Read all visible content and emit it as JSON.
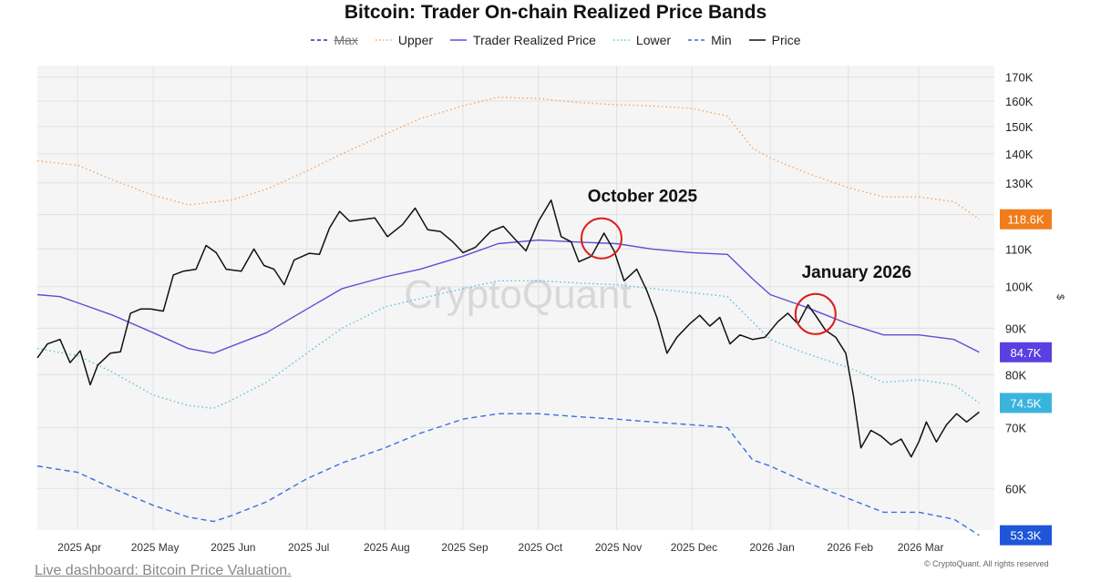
{
  "chart_data": {
    "type": "line",
    "title": "Bitcoin: Trader On-chain Realized Price Bands",
    "xlabel": "",
    "ylabel": "$",
    "y_scale": "log",
    "ylim": [
      54000,
      175000
    ],
    "x_range": [
      "2025-03-16",
      "2026-03-31"
    ],
    "x_ticks": [
      {
        "date": "2025-04-01",
        "label": "2025 Apr"
      },
      {
        "date": "2025-05-01",
        "label": "2025 May"
      },
      {
        "date": "2025-06-01",
        "label": "2025 Jun"
      },
      {
        "date": "2025-07-01",
        "label": "2025 Jul"
      },
      {
        "date": "2025-08-01",
        "label": "2025 Aug"
      },
      {
        "date": "2025-09-01",
        "label": "2025 Sep"
      },
      {
        "date": "2025-10-01",
        "label": "2025 Oct"
      },
      {
        "date": "2025-11-01",
        "label": "2025 Nov"
      },
      {
        "date": "2025-12-01",
        "label": "2025 Dec"
      },
      {
        "date": "2026-01-01",
        "label": "2026 Jan"
      },
      {
        "date": "2026-02-01",
        "label": "2026 Feb"
      },
      {
        "date": "2026-03-01",
        "label": "2026 Mar"
      }
    ],
    "y_ticks": [
      {
        "value": 60000,
        "label": "60K"
      },
      {
        "value": 70000,
        "label": "70K"
      },
      {
        "value": 80000,
        "label": "80K"
      },
      {
        "value": 90000,
        "label": "90K"
      },
      {
        "value": 100000,
        "label": "100K"
      },
      {
        "value": 110000,
        "label": "110K"
      },
      {
        "value": 120000,
        "label": "120K"
      },
      {
        "value": 130000,
        "label": "130K"
      },
      {
        "value": 140000,
        "label": "140K"
      },
      {
        "value": 150000,
        "label": "150K"
      },
      {
        "value": 160000,
        "label": "160K"
      },
      {
        "value": 170000,
        "label": "170K"
      }
    ],
    "grid": true,
    "legend_position": "top",
    "series": [
      {
        "name": "Max",
        "color": "#1e3a8a",
        "style": "dashed",
        "hidden": true,
        "points": []
      },
      {
        "name": "Upper",
        "color": "#f4a261",
        "style": "dotted",
        "end_label": "118.6K",
        "end_label_color": "#f07c1c",
        "points": [
          [
            "2025-03-16",
            137500
          ],
          [
            "2025-04-01",
            136000
          ],
          [
            "2025-04-15",
            131000
          ],
          [
            "2025-05-01",
            126000
          ],
          [
            "2025-05-15",
            123000
          ],
          [
            "2025-06-01",
            124500
          ],
          [
            "2025-06-15",
            128000
          ],
          [
            "2025-07-01",
            134000
          ],
          [
            "2025-07-15",
            140000
          ],
          [
            "2025-08-01",
            147000
          ],
          [
            "2025-08-15",
            153000
          ],
          [
            "2025-09-01",
            158000
          ],
          [
            "2025-09-15",
            161500
          ],
          [
            "2025-10-01",
            161000
          ],
          [
            "2025-10-15",
            159500
          ],
          [
            "2025-11-01",
            158500
          ],
          [
            "2025-11-15",
            158000
          ],
          [
            "2025-12-01",
            157000
          ],
          [
            "2025-12-15",
            154000
          ],
          [
            "2025-12-25",
            142000
          ],
          [
            "2026-01-01",
            138500
          ],
          [
            "2026-01-15",
            133500
          ],
          [
            "2026-02-01",
            128500
          ],
          [
            "2026-02-15",
            125500
          ],
          [
            "2026-03-01",
            125500
          ],
          [
            "2026-03-15",
            124000
          ],
          [
            "2026-03-25",
            118600
          ]
        ]
      },
      {
        "name": "Trader Realized Price",
        "color": "#5b4fd6",
        "style": "solid",
        "end_label": "84.7K",
        "end_label_color": "#5b3fe0",
        "points": [
          [
            "2025-03-16",
            98000
          ],
          [
            "2025-03-25",
            97500
          ],
          [
            "2025-04-01",
            96000
          ],
          [
            "2025-04-15",
            93000
          ],
          [
            "2025-05-01",
            89000
          ],
          [
            "2025-05-15",
            85500
          ],
          [
            "2025-05-25",
            84500
          ],
          [
            "2025-06-01",
            86000
          ],
          [
            "2025-06-15",
            89000
          ],
          [
            "2025-07-01",
            94500
          ],
          [
            "2025-07-15",
            99500
          ],
          [
            "2025-08-01",
            102500
          ],
          [
            "2025-08-15",
            104500
          ],
          [
            "2025-09-01",
            108000
          ],
          [
            "2025-09-15",
            111500
          ],
          [
            "2025-10-01",
            112500
          ],
          [
            "2025-10-15",
            112000
          ],
          [
            "2025-11-01",
            111500
          ],
          [
            "2025-11-15",
            110000
          ],
          [
            "2025-12-01",
            109000
          ],
          [
            "2025-12-15",
            108500
          ],
          [
            "2025-12-25",
            102000
          ],
          [
            "2026-01-01",
            98000
          ],
          [
            "2026-01-15",
            95000
          ],
          [
            "2026-02-01",
            91000
          ],
          [
            "2026-02-15",
            88500
          ],
          [
            "2026-03-01",
            88500
          ],
          [
            "2026-03-15",
            87500
          ],
          [
            "2026-03-25",
            84700
          ]
        ]
      },
      {
        "name": "Lower",
        "color": "#5bc0de",
        "style": "dotted",
        "end_label": "74.5K",
        "end_label_color": "#3bb4dc",
        "points": [
          [
            "2025-03-16",
            85500
          ],
          [
            "2025-04-01",
            84000
          ],
          [
            "2025-04-15",
            80500
          ],
          [
            "2025-05-01",
            76000
          ],
          [
            "2025-05-15",
            74000
          ],
          [
            "2025-05-25",
            73500
          ],
          [
            "2025-06-01",
            75000
          ],
          [
            "2025-06-15",
            78500
          ],
          [
            "2025-07-01",
            84500
          ],
          [
            "2025-07-15",
            90000
          ],
          [
            "2025-08-01",
            95000
          ],
          [
            "2025-08-15",
            97000
          ],
          [
            "2025-09-01",
            99500
          ],
          [
            "2025-09-15",
            101500
          ],
          [
            "2025-10-01",
            101500
          ],
          [
            "2025-10-15",
            101000
          ],
          [
            "2025-11-01",
            100500
          ],
          [
            "2025-11-15",
            99500
          ],
          [
            "2025-12-01",
            98500
          ],
          [
            "2025-12-15",
            97500
          ],
          [
            "2025-12-25",
            91500
          ],
          [
            "2026-01-01",
            87500
          ],
          [
            "2026-01-15",
            84500
          ],
          [
            "2026-02-01",
            81500
          ],
          [
            "2026-02-15",
            78500
          ],
          [
            "2026-03-01",
            79000
          ],
          [
            "2026-03-15",
            78000
          ],
          [
            "2026-03-25",
            74500
          ]
        ]
      },
      {
        "name": "Min",
        "color": "#3b6fe0",
        "style": "dashed",
        "end_label": "53.3K",
        "end_label_color": "#1f55d8",
        "points": [
          [
            "2025-03-16",
            63500
          ],
          [
            "2025-04-01",
            62500
          ],
          [
            "2025-04-15",
            60000
          ],
          [
            "2025-05-01",
            57500
          ],
          [
            "2025-05-15",
            55800
          ],
          [
            "2025-05-25",
            55200
          ],
          [
            "2025-06-01",
            56000
          ],
          [
            "2025-06-15",
            58000
          ],
          [
            "2025-07-01",
            61500
          ],
          [
            "2025-07-15",
            64000
          ],
          [
            "2025-08-01",
            66500
          ],
          [
            "2025-08-15",
            69000
          ],
          [
            "2025-09-01",
            71500
          ],
          [
            "2025-09-15",
            72500
          ],
          [
            "2025-10-01",
            72500
          ],
          [
            "2025-10-15",
            72000
          ],
          [
            "2025-11-01",
            71500
          ],
          [
            "2025-11-15",
            71000
          ],
          [
            "2025-12-01",
            70500
          ],
          [
            "2025-12-15",
            70000
          ],
          [
            "2025-12-25",
            64500
          ],
          [
            "2026-01-01",
            63500
          ],
          [
            "2026-01-15",
            61000
          ],
          [
            "2026-02-01",
            58500
          ],
          [
            "2026-02-15",
            56500
          ],
          [
            "2026-03-01",
            56500
          ],
          [
            "2026-03-15",
            55500
          ],
          [
            "2026-03-25",
            53300
          ]
        ]
      },
      {
        "name": "Price",
        "color": "#111111",
        "style": "solid",
        "points": [
          [
            "2025-03-16",
            83500
          ],
          [
            "2025-03-20",
            86500
          ],
          [
            "2025-03-25",
            87500
          ],
          [
            "2025-03-29",
            82500
          ],
          [
            "2025-04-02",
            85000
          ],
          [
            "2025-04-06",
            78000
          ],
          [
            "2025-04-09",
            82000
          ],
          [
            "2025-04-14",
            84500
          ],
          [
            "2025-04-18",
            84800
          ],
          [
            "2025-04-22",
            93500
          ],
          [
            "2025-04-26",
            94500
          ],
          [
            "2025-04-30",
            94500
          ],
          [
            "2025-05-05",
            94000
          ],
          [
            "2025-05-09",
            103000
          ],
          [
            "2025-05-13",
            104000
          ],
          [
            "2025-05-18",
            104500
          ],
          [
            "2025-05-22",
            111000
          ],
          [
            "2025-05-26",
            109000
          ],
          [
            "2025-05-30",
            104500
          ],
          [
            "2025-06-05",
            104000
          ],
          [
            "2025-06-10",
            110000
          ],
          [
            "2025-06-14",
            105500
          ],
          [
            "2025-06-18",
            104500
          ],
          [
            "2025-06-22",
            100500
          ],
          [
            "2025-06-26",
            107000
          ],
          [
            "2025-07-02",
            108800
          ],
          [
            "2025-07-06",
            108500
          ],
          [
            "2025-07-10",
            116000
          ],
          [
            "2025-07-14",
            121000
          ],
          [
            "2025-07-18",
            118000
          ],
          [
            "2025-07-23",
            118500
          ],
          [
            "2025-07-28",
            119000
          ],
          [
            "2025-08-02",
            113500
          ],
          [
            "2025-08-08",
            117000
          ],
          [
            "2025-08-13",
            122000
          ],
          [
            "2025-08-18",
            115500
          ],
          [
            "2025-08-23",
            115000
          ],
          [
            "2025-08-28",
            112000
          ],
          [
            "2025-09-01",
            109000
          ],
          [
            "2025-09-06",
            110500
          ],
          [
            "2025-09-12",
            115000
          ],
          [
            "2025-09-17",
            116500
          ],
          [
            "2025-09-22",
            112500
          ],
          [
            "2025-09-26",
            109500
          ],
          [
            "2025-10-01",
            118000
          ],
          [
            "2025-10-06",
            124500
          ],
          [
            "2025-10-10",
            113500
          ],
          [
            "2025-10-14",
            112000
          ],
          [
            "2025-10-17",
            106500
          ],
          [
            "2025-10-22",
            108000
          ],
          [
            "2025-10-27",
            114500
          ],
          [
            "2025-10-31",
            109500
          ],
          [
            "2025-11-04",
            101500
          ],
          [
            "2025-11-09",
            104500
          ],
          [
            "2025-11-13",
            99000
          ],
          [
            "2025-11-17",
            92500
          ],
          [
            "2025-11-21",
            84500
          ],
          [
            "2025-11-25",
            88000
          ],
          [
            "2025-11-30",
            91000
          ],
          [
            "2025-12-04",
            93000
          ],
          [
            "2025-12-08",
            90500
          ],
          [
            "2025-12-12",
            92500
          ],
          [
            "2025-12-16",
            86500
          ],
          [
            "2025-12-20",
            88500
          ],
          [
            "2025-12-25",
            87500
          ],
          [
            "2025-12-30",
            88000
          ],
          [
            "2026-01-04",
            91500
          ],
          [
            "2026-01-08",
            93500
          ],
          [
            "2026-01-12",
            91000
          ],
          [
            "2026-01-16",
            95500
          ],
          [
            "2026-01-19",
            93000
          ],
          [
            "2026-01-23",
            89500
          ],
          [
            "2026-01-27",
            88000
          ],
          [
            "2026-01-31",
            84500
          ],
          [
            "2026-02-03",
            76000
          ],
          [
            "2026-02-06",
            66500
          ],
          [
            "2026-02-10",
            69500
          ],
          [
            "2026-02-14",
            68500
          ],
          [
            "2026-02-18",
            67000
          ],
          [
            "2026-02-22",
            68000
          ],
          [
            "2026-02-26",
            65000
          ],
          [
            "2026-03-01",
            67500
          ],
          [
            "2026-03-04",
            71000
          ],
          [
            "2026-03-08",
            67500
          ],
          [
            "2026-03-12",
            70500
          ],
          [
            "2026-03-16",
            72500
          ],
          [
            "2026-03-20",
            71000
          ],
          [
            "2026-03-25",
            72800
          ]
        ]
      }
    ],
    "annotations": [
      {
        "text": "October 2025",
        "date": "2025-10-26",
        "value": 113000
      },
      {
        "text": "January 2026",
        "date": "2026-01-19",
        "value": 93300
      }
    ],
    "watermark": "CryptoQuant"
  },
  "footer": {
    "link_text": "Live dashboard: Bitcoin Price Valuation.",
    "copyright": "© CryptoQuant. All rights reserved"
  }
}
